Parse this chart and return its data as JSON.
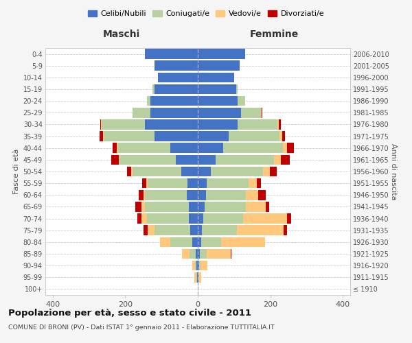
{
  "age_groups": [
    "100+",
    "95-99",
    "90-94",
    "85-89",
    "80-84",
    "75-79",
    "70-74",
    "65-69",
    "60-64",
    "55-59",
    "50-54",
    "45-49",
    "40-44",
    "35-39",
    "30-34",
    "25-29",
    "20-24",
    "15-19",
    "10-14",
    "5-9",
    "0-4"
  ],
  "birth_years": [
    "≤ 1910",
    "1911-1915",
    "1916-1920",
    "1921-1925",
    "1926-1930",
    "1931-1935",
    "1936-1940",
    "1941-1945",
    "1946-1950",
    "1951-1955",
    "1956-1960",
    "1961-1965",
    "1966-1970",
    "1971-1975",
    "1976-1980",
    "1981-1985",
    "1986-1990",
    "1991-1995",
    "1996-2000",
    "2001-2005",
    "2006-2010"
  ],
  "colors": {
    "celibi": "#4472c4",
    "coniugati": "#b8cfa0",
    "vedovi": "#ffc87c",
    "divorziati": "#c00000"
  },
  "maschi": {
    "celibi": [
      0,
      2,
      3,
      5,
      15,
      20,
      25,
      25,
      30,
      28,
      45,
      60,
      75,
      120,
      145,
      130,
      130,
      120,
      110,
      120,
      145
    ],
    "coniugati": [
      0,
      2,
      5,
      18,
      60,
      100,
      115,
      120,
      115,
      110,
      135,
      155,
      145,
      140,
      120,
      50,
      10,
      5,
      0,
      0,
      0
    ],
    "vedovi": [
      0,
      5,
      8,
      20,
      30,
      18,
      15,
      10,
      5,
      4,
      3,
      3,
      3,
      2,
      2,
      0,
      0,
      0,
      0,
      0,
      0
    ],
    "divorziati": [
      0,
      0,
      0,
      0,
      0,
      12,
      12,
      18,
      12,
      12,
      12,
      20,
      12,
      8,
      2,
      0,
      0,
      0,
      0,
      0,
      0
    ]
  },
  "femmine": {
    "celibi": [
      0,
      2,
      3,
      5,
      10,
      12,
      15,
      18,
      22,
      25,
      35,
      50,
      70,
      85,
      110,
      120,
      110,
      105,
      100,
      115,
      130
    ],
    "coniugati": [
      0,
      2,
      5,
      20,
      55,
      95,
      110,
      115,
      110,
      115,
      145,
      160,
      165,
      140,
      110,
      55,
      20,
      5,
      0,
      0,
      0
    ],
    "vedovi": [
      2,
      5,
      18,
      65,
      120,
      130,
      120,
      55,
      35,
      22,
      18,
      18,
      10,
      8,
      4,
      0,
      0,
      0,
      0,
      0,
      0
    ],
    "divorziati": [
      0,
      0,
      0,
      3,
      0,
      8,
      12,
      8,
      20,
      12,
      20,
      25,
      20,
      8,
      5,
      3,
      0,
      0,
      0,
      0,
      0
    ]
  },
  "title": "Popolazione per età, sesso e stato civile - 2011",
  "subtitle": "COMUNE DI BRONI (PV) - Dati ISTAT 1° gennaio 2011 - Elaborazione TUTTITALIA.IT",
  "xlim": 420,
  "xticks": [
    -400,
    -200,
    0,
    200,
    400
  ],
  "legend_labels": [
    "Celibi/Nubili",
    "Coniugati/e",
    "Vedovi/e",
    "Divorziati/e"
  ],
  "ylabel_left": "Fasce di età",
  "ylabel_right": "Anni di nascita",
  "header_left": "Maschi",
  "header_right": "Femmine",
  "background": "#f5f5f5",
  "plot_bg": "#ffffff",
  "grid_color": "#cccccc",
  "vline_color": "#aaaacc",
  "text_color": "#555555",
  "title_color": "#111111",
  "subtitle_color": "#444444"
}
